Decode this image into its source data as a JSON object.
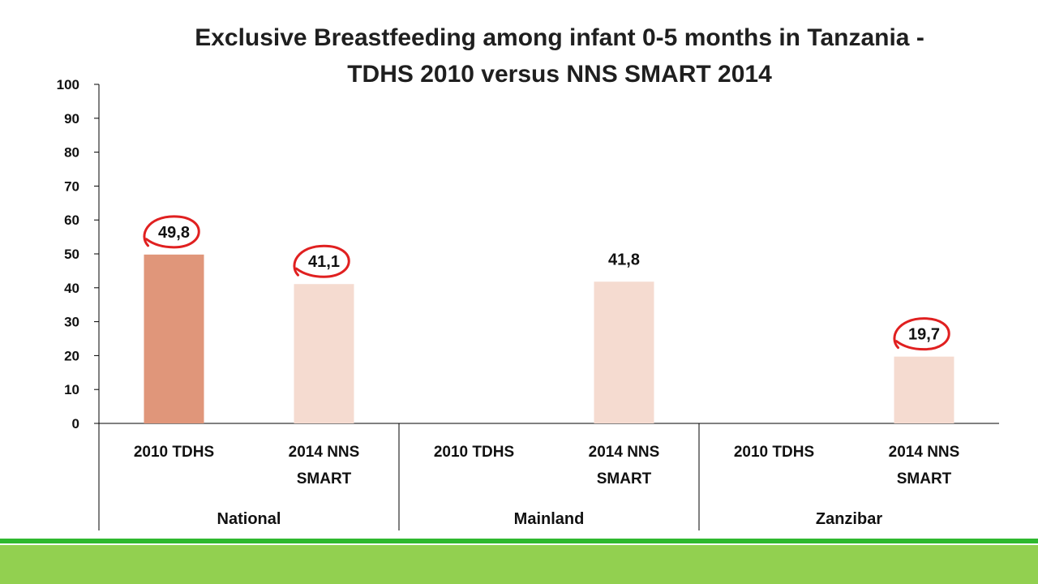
{
  "chart_data": {
    "type": "bar",
    "title_lines": [
      "Exclusive Breastfeeding among infant 0-5 months in Tanzania -",
      "TDHS 2010 versus NNS SMART 2014"
    ],
    "xlabel": "",
    "ylabel": "",
    "ylim": [
      0,
      100
    ],
    "yticks": [
      0,
      10,
      20,
      30,
      40,
      50,
      60,
      70,
      80,
      90,
      100
    ],
    "grid": false,
    "legend": "none",
    "groups": [
      {
        "name": "National",
        "categories": [
          {
            "label_lines": [
              "2010 TDHS"
            ],
            "value": 49.8,
            "data_label": "49,8",
            "color": "#e0967a",
            "circled": true
          },
          {
            "label_lines": [
              "2014 NNS",
              "SMART"
            ],
            "value": 41.1,
            "data_label": "41,1",
            "color": "#f5dbd0",
            "circled": true
          }
        ]
      },
      {
        "name": "Mainland",
        "categories": [
          {
            "label_lines": [
              "2010 TDHS"
            ],
            "value": null,
            "data_label": "",
            "color": "#e0967a",
            "circled": false
          },
          {
            "label_lines": [
              "2014 NNS",
              "SMART"
            ],
            "value": 41.8,
            "data_label": "41,8",
            "color": "#f5dbd0",
            "circled": false
          }
        ]
      },
      {
        "name": "Zanzibar",
        "categories": [
          {
            "label_lines": [
              "2010 TDHS"
            ],
            "value": null,
            "data_label": "",
            "color": "#e0967a",
            "circled": false
          },
          {
            "label_lines": [
              "2014 NNS",
              "SMART"
            ],
            "value": 19.7,
            "data_label": "19,7",
            "color": "#f5dbd0",
            "circled": true
          }
        ]
      }
    ]
  },
  "colors": {
    "axis": "#000000",
    "circle_annotation": "#e02020",
    "footer_dark": "#2eb82e",
    "footer_light": "#92d050"
  }
}
